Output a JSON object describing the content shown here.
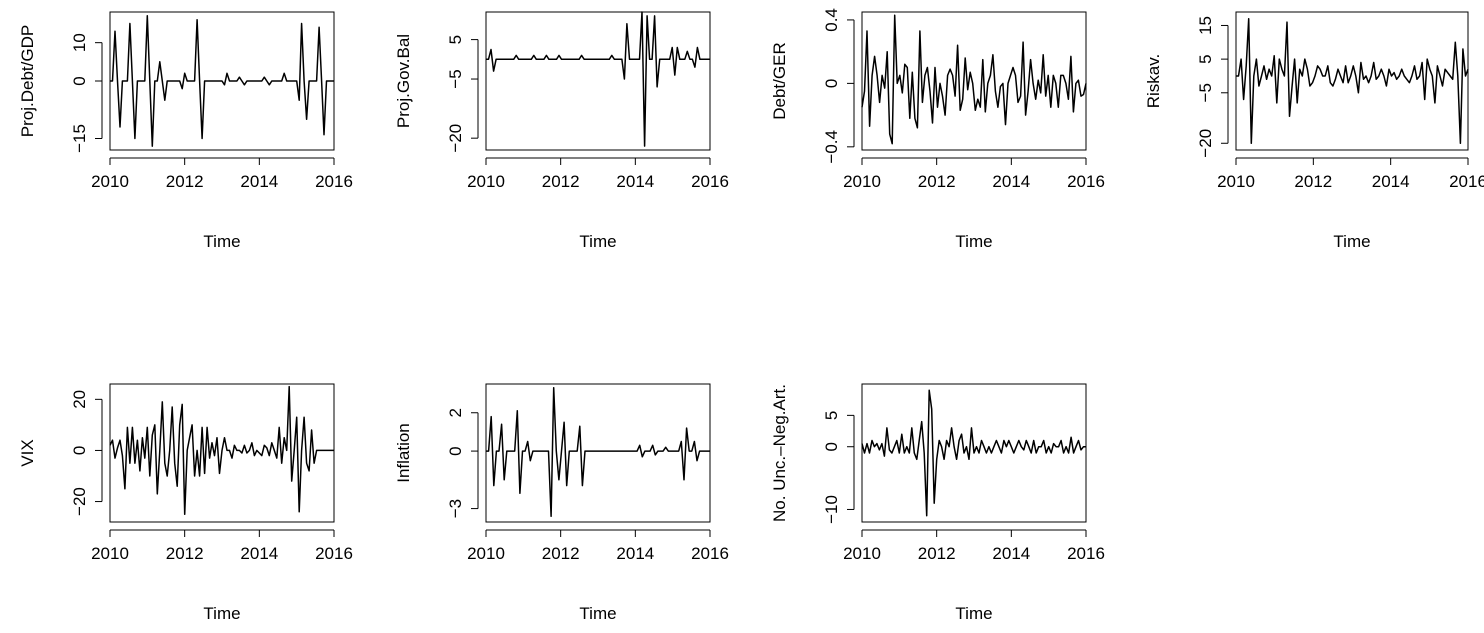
{
  "figure": {
    "x_axis_label": "Time",
    "line_color": "#000000",
    "background": "#ffffff"
  },
  "chart_data": [
    {
      "type": "line",
      "ylabel": "Proj.Debt/GDP",
      "xlabel": "Time",
      "xlim": [
        2010,
        2016
      ],
      "ylim": [
        -18,
        18
      ],
      "xticks": [
        2010,
        2012,
        2014,
        2016
      ],
      "yticks": [
        -15,
        0,
        10
      ],
      "x_start": 2010.0,
      "x_step": 0.0833333,
      "values": [
        0,
        0,
        13,
        0,
        -12,
        0,
        0,
        0,
        15,
        0,
        -15,
        0,
        0,
        0,
        0,
        17,
        0,
        -17,
        0,
        0,
        5,
        0,
        -5,
        0,
        0,
        0,
        0,
        0,
        0,
        -2,
        2,
        0,
        0,
        0,
        0,
        16,
        0,
        -15,
        0,
        0,
        0,
        0,
        0,
        0,
        0,
        0,
        -1,
        2,
        0,
        0,
        0,
        0,
        1,
        0,
        -1,
        0,
        0,
        0,
        0,
        0,
        0,
        0,
        1,
        0,
        -1,
        0,
        0,
        0,
        0,
        0,
        2,
        0,
        0,
        0,
        0,
        0,
        -5,
        15,
        0,
        -10,
        0,
        0,
        0,
        0,
        14,
        0,
        -14,
        0,
        0,
        0,
        0
      ]
    },
    {
      "type": "line",
      "ylabel": "Proj.Gov.Bal",
      "xlabel": "Time",
      "xlim": [
        2010,
        2016
      ],
      "ylim": [
        -23,
        12
      ],
      "xticks": [
        2010,
        2012,
        2014,
        2016
      ],
      "yticks": [
        -20,
        -5,
        5
      ],
      "x_start": 2010.0,
      "x_step": 0.0833333,
      "values": [
        0,
        0,
        2.5,
        -3,
        0,
        0,
        0,
        0,
        0,
        0,
        0,
        0,
        1,
        0,
        0,
        0,
        0,
        0,
        0,
        1,
        0,
        0,
        0,
        0,
        1,
        0,
        0,
        0,
        0,
        1,
        0,
        0,
        0,
        0,
        0,
        0,
        0,
        0,
        1,
        0,
        0,
        0,
        0,
        0,
        0,
        0,
        0,
        0,
        0,
        0,
        1,
        0,
        0,
        0,
        0,
        -5,
        9,
        0,
        0,
        0,
        0,
        0,
        12,
        -22,
        11,
        0,
        0,
        11,
        -7,
        0,
        0,
        0,
        0,
        0,
        3,
        -4,
        3,
        0,
        0,
        0,
        2,
        0,
        0,
        -2,
        3,
        0,
        0,
        0,
        0,
        0
      ]
    },
    {
      "type": "line",
      "ylabel": "Debt/GER",
      "xlabel": "Time",
      "xlim": [
        2010,
        2016
      ],
      "ylim": [
        -0.42,
        0.45
      ],
      "xticks": [
        2010,
        2012,
        2014,
        2016
      ],
      "yticks": [
        -0.4,
        0.0,
        0.4
      ],
      "x_start": 2010.0,
      "x_step": 0.0833333,
      "values": [
        -0.15,
        -0.05,
        0.33,
        -0.27,
        0.05,
        0.17,
        0.05,
        -0.12,
        0.05,
        -0.03,
        0.2,
        -0.32,
        -0.38,
        0.43,
        0.0,
        0.05,
        -0.06,
        0.12,
        0.1,
        -0.22,
        0.07,
        -0.22,
        -0.28,
        0.33,
        -0.12,
        0.05,
        0.1,
        -0.05,
        -0.25,
        0.1,
        -0.15,
        0.0,
        -0.08,
        -0.2,
        0.05,
        0.09,
        0.05,
        -0.08,
        0.24,
        -0.17,
        -0.1,
        0.16,
        -0.04,
        0.07,
        0.0,
        -0.17,
        -0.1,
        -0.15,
        0.15,
        -0.18,
        0.0,
        0.05,
        0.18,
        -0.05,
        -0.15,
        -0.02,
        0.0,
        -0.26,
        0.0,
        0.05,
        0.1,
        0.05,
        -0.12,
        -0.08,
        0.26,
        -0.2,
        -0.05,
        0.15,
        0.0,
        -0.1,
        0.02,
        -0.06,
        0.18,
        -0.08,
        0.05,
        -0.15,
        0.05,
        0.0,
        -0.15,
        0.05,
        0.05,
        0.0,
        -0.1,
        0.17,
        -0.18,
        0.0,
        0.02,
        -0.08,
        -0.07,
        0.0
      ]
    },
    {
      "type": "line",
      "ylabel": "Riskav.",
      "xlabel": "Time",
      "xlim": [
        2010,
        2016
      ],
      "ylim": [
        -22,
        19
      ],
      "xticks": [
        2010,
        2012,
        2014,
        2016
      ],
      "yticks": [
        -20,
        -5,
        5,
        15
      ],
      "x_start": 2010.0,
      "x_step": 0.0833333,
      "values": [
        0,
        0,
        5,
        -7,
        3,
        17,
        -20,
        0,
        5,
        -3,
        0,
        3,
        -1,
        2,
        0,
        6,
        -8,
        5,
        2,
        0,
        16,
        -12,
        -3,
        5,
        -8,
        2,
        0,
        5,
        2,
        -3,
        -2,
        0,
        3,
        2,
        0,
        0,
        3,
        -2,
        -3,
        -1,
        2,
        0,
        -2,
        3,
        -2,
        0,
        3,
        0,
        -5,
        4,
        -1,
        0,
        -2,
        0,
        4,
        -1,
        0,
        2,
        0,
        -3,
        2,
        0,
        1,
        -1,
        0,
        2,
        0,
        -1,
        -2,
        0,
        3,
        -1,
        0,
        4,
        -7,
        5,
        2,
        0,
        -8,
        3,
        0,
        -3,
        2,
        1,
        0,
        -1,
        10,
        0,
        -20,
        8,
        0,
        2
      ]
    },
    {
      "type": "line",
      "ylabel": "VIX",
      "xlabel": "Time",
      "xlim": [
        2010,
        2016
      ],
      "ylim": [
        -28,
        26
      ],
      "xticks": [
        2010,
        2012,
        2014,
        2016
      ],
      "yticks": [
        -20,
        0,
        20
      ],
      "x_start": 2010.0,
      "x_step": 0.0833333,
      "values": [
        2,
        4,
        -3,
        1,
        4,
        -2,
        -15,
        9,
        -5,
        9,
        -5,
        4,
        -8,
        5,
        -3,
        9,
        -10,
        6,
        10,
        -17,
        0,
        19,
        -5,
        -10,
        0,
        17,
        -5,
        -14,
        10,
        18,
        -25,
        0,
        5,
        10,
        -10,
        0,
        -10,
        9,
        -9,
        9,
        -3,
        3,
        -2,
        5,
        -9,
        0,
        5,
        0,
        0,
        -3,
        2,
        0,
        0,
        -1,
        2,
        -1,
        0,
        3,
        -2,
        0,
        -1,
        -2,
        2,
        1,
        -2,
        3,
        0,
        -3,
        9,
        -5,
        5,
        0,
        25,
        -12,
        0,
        13,
        -24,
        0,
        13,
        -5,
        -8,
        8,
        -5,
        0,
        0,
        0,
        0,
        0,
        0,
        0,
        0
      ]
    },
    {
      "type": "line",
      "ylabel": "Inflation",
      "xlabel": "Time",
      "xlim": [
        2010,
        2016
      ],
      "ylim": [
        -3.7,
        3.5
      ],
      "xticks": [
        2010,
        2012,
        2014,
        2016
      ],
      "yticks": [
        -3,
        0,
        2
      ],
      "x_start": 2010.0,
      "x_step": 0.0833333,
      "values": [
        0,
        0,
        1.8,
        -1.8,
        0,
        0,
        1.4,
        -1.5,
        0,
        0,
        0,
        0,
        2.1,
        -2.2,
        0,
        0,
        0.5,
        -0.5,
        0,
        0,
        0,
        0,
        0,
        0,
        0,
        -3.4,
        3.3,
        0,
        -1.5,
        0,
        1.5,
        -1.8,
        0,
        0,
        0,
        0,
        1.3,
        -1.8,
        0,
        0,
        0,
        0,
        0,
        0,
        0,
        0,
        0,
        0,
        0,
        0,
        0,
        0,
        0,
        0,
        0,
        0,
        0,
        0,
        0,
        0.3,
        -0.3,
        0,
        0,
        0,
        0.3,
        -0.2,
        0,
        0,
        0,
        0.2,
        0,
        0,
        0,
        0,
        0,
        0.5,
        -1.5,
        1.2,
        0,
        0,
        0.5,
        -0.5,
        0,
        0,
        0,
        0,
        0
      ]
    },
    {
      "type": "line",
      "ylabel": "No. Unc.–Neg.Art.",
      "xlabel": "Time",
      "xlim": [
        2010,
        2016
      ],
      "ylim": [
        -12,
        10
      ],
      "xticks": [
        2010,
        2012,
        2014,
        2016
      ],
      "yticks": [
        -10,
        0,
        5
      ],
      "x_start": 2010.0,
      "x_step": 0.0833333,
      "values": [
        0.5,
        -1,
        0.5,
        -1,
        1,
        0,
        0.5,
        -0.5,
        0.5,
        -1.5,
        3,
        -0.5,
        -1,
        0,
        1,
        -1,
        2,
        -1,
        0,
        -1,
        3,
        -1,
        -2,
        1,
        4,
        -1,
        -11,
        9,
        6,
        -9,
        -2,
        1,
        0,
        -2,
        1,
        0,
        3,
        0,
        -2,
        1,
        2,
        -1,
        0,
        -2,
        3,
        -1,
        0,
        -1,
        1,
        0,
        -1,
        0,
        -1,
        0,
        1,
        0,
        -1,
        1,
        0,
        1,
        0,
        -1,
        0,
        1,
        0,
        -0.5,
        1,
        0,
        -1,
        1,
        -1,
        0,
        0,
        1,
        -1,
        0,
        -1,
        0.5,
        0,
        0,
        1,
        -1,
        0,
        -1,
        1.5,
        -1,
        0,
        1,
        -0.5,
        0,
        0
      ]
    }
  ]
}
